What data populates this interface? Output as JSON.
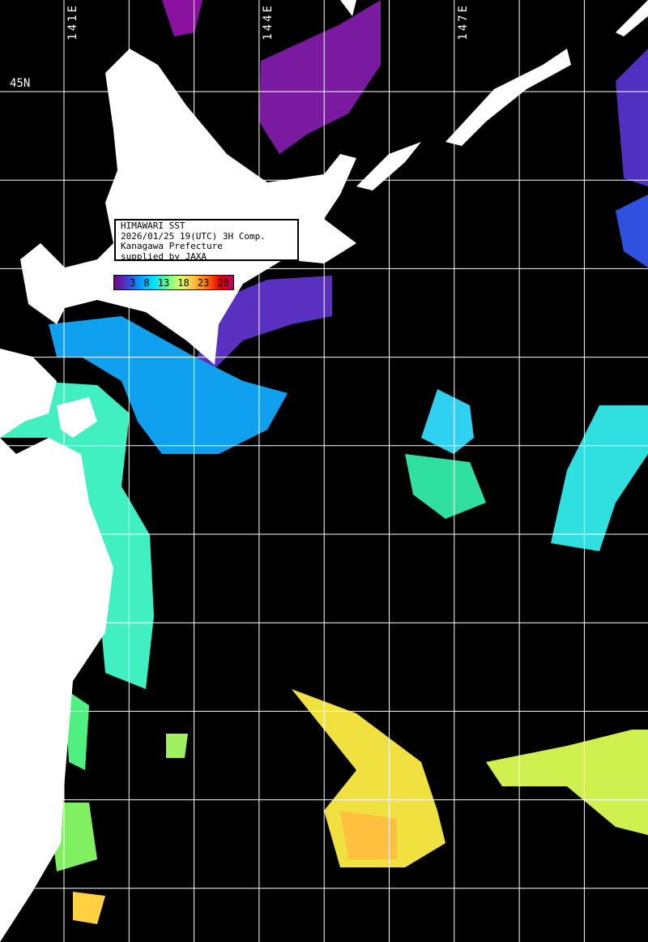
{
  "map": {
    "lon_labels": [
      "141E",
      "144E",
      "147E"
    ],
    "lat_labels": [
      "45N"
    ],
    "colors": {
      "land": "#ffffff",
      "no_data": "#000000",
      "grid": "#ffffff"
    }
  },
  "info_box": {
    "line1": "HIMAWARI SST",
    "line2": "2026/01/25 19(UTC) 3H Comp.",
    "line3": "Kanagawa Prefecture",
    "line4": "supplied by JAXA"
  },
  "colorbar": {
    "ticks": [
      "3",
      "8",
      "13",
      "18",
      "23",
      "28"
    ],
    "colors": [
      "#7a0080",
      "#4040d0",
      "#00a0ff",
      "#00e0ff",
      "#60ff90",
      "#e0ff60",
      "#ffc040",
      "#ff7000",
      "#e00000",
      "#c00060"
    ]
  }
}
